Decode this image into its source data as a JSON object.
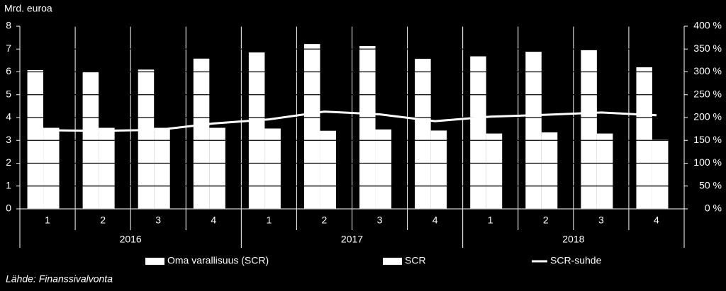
{
  "chart_data": {
    "type": "bar",
    "y_label": "Mrd. euroa",
    "source": "Lähde: Finanssivalvonta",
    "categories": [
      "1",
      "2",
      "3",
      "4",
      "1",
      "2",
      "3",
      "4",
      "1",
      "2",
      "3",
      "4"
    ],
    "year_groups": [
      "2016",
      "2017",
      "2018"
    ],
    "series": [
      {
        "name": "Oma varallisuus (SCR)",
        "color": "#ffffff",
        "values": [
          6.08,
          6.02,
          6.1,
          6.58,
          6.85,
          7.22,
          7.13,
          6.57,
          6.68,
          6.88,
          6.95,
          6.2
        ]
      },
      {
        "name": "SCR",
        "color": "#ffffff",
        "values": [
          3.55,
          3.55,
          3.55,
          3.55,
          3.52,
          3.42,
          3.48,
          3.43,
          3.3,
          3.35,
          3.3,
          3.03
        ]
      },
      {
        "name": "SCR-suhde",
        "type": "line",
        "axis": "y2",
        "color": "#ffffff",
        "values": [
          172,
          171,
          173,
          187,
          196,
          213,
          207,
          192,
          202,
          206,
          211,
          205
        ]
      }
    ],
    "ylim": [
      0,
      8
    ],
    "yticks": [
      0,
      1,
      2,
      3,
      4,
      5,
      6,
      7,
      8
    ],
    "y2lim": [
      0,
      400
    ],
    "y2ticks": [
      {
        "value": 0,
        "label": "0 %"
      },
      {
        "value": 50,
        "label": "50 %"
      },
      {
        "value": 100,
        "label": "100 %"
      },
      {
        "value": 150,
        "label": "150 %"
      },
      {
        "value": 200,
        "label": "200 %"
      },
      {
        "value": 250,
        "label": "250 %"
      },
      {
        "value": 300,
        "label": "300 %"
      },
      {
        "value": 350,
        "label": "350 %"
      },
      {
        "value": 400,
        "label": "400 %"
      }
    ],
    "grid": true,
    "legend": "bottom"
  }
}
